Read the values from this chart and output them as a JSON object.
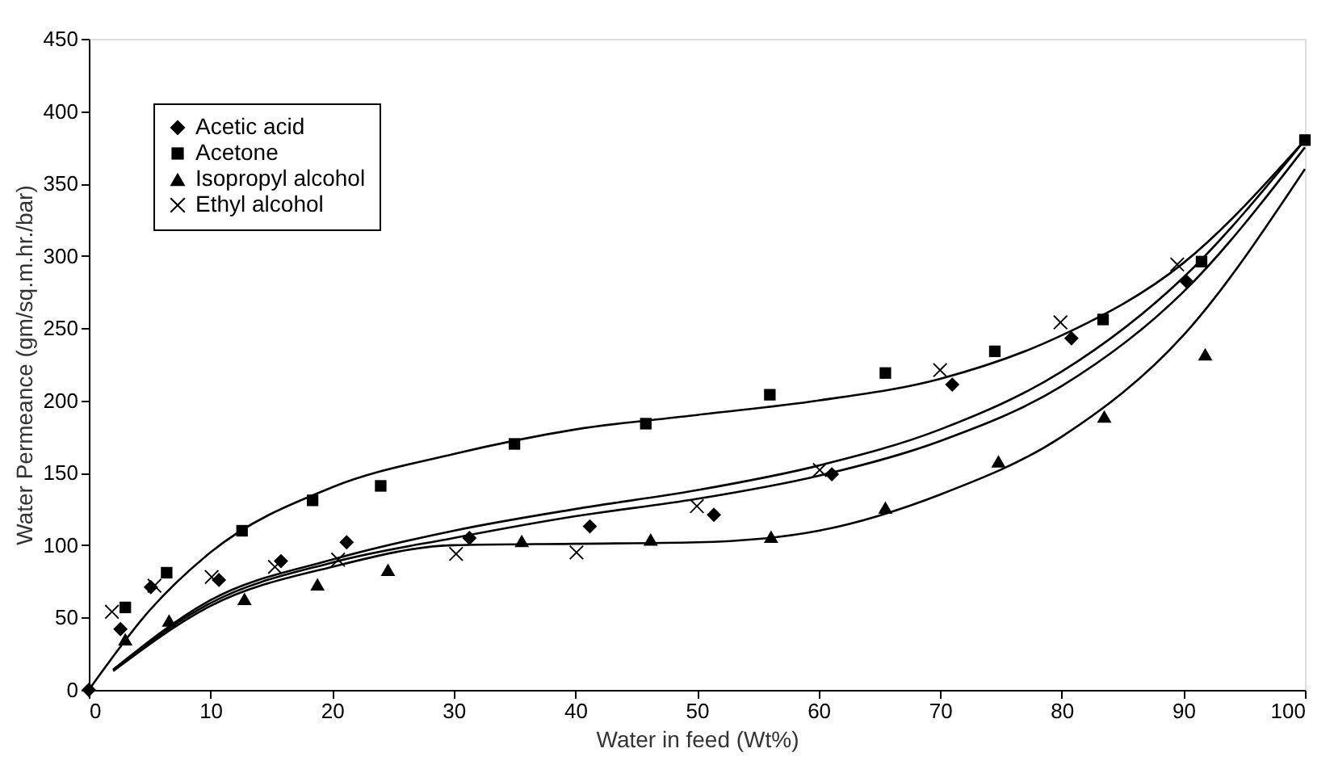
{
  "chart_data": {
    "type": "scatter",
    "xlabel": "Water in feed (Wt%)",
    "ylabel": "Water Permeance (gm/sq.m.hr./bar)",
    "xlim": [
      0,
      100
    ],
    "ylim": [
      0,
      450
    ],
    "xticks": [
      0,
      10,
      20,
      30,
      40,
      50,
      60,
      70,
      80,
      90,
      100
    ],
    "yticks": [
      0,
      50,
      100,
      150,
      200,
      250,
      300,
      350,
      400,
      450
    ],
    "grid": false,
    "legend": "top left",
    "series": [
      {
        "name": "Acetic acid",
        "color": "#000000",
        "marker": "diamond",
        "x": [
          0,
          2.6,
          5.1,
          10.7,
          15.8,
          21.2,
          31.3,
          41.2,
          51.4,
          61.1,
          71,
          80.8,
          90.3
        ],
        "values": [
          0,
          42,
          71,
          76,
          89,
          102,
          105,
          113,
          121,
          149,
          211,
          243,
          282
        ]
      },
      {
        "name": "Acetone",
        "color": "#000000",
        "marker": "square",
        "x": [
          3,
          6.4,
          12.6,
          18.4,
          24,
          35,
          45.8,
          56,
          65.5,
          74.5,
          83.4,
          91.5,
          100
        ],
        "values": [
          57,
          81,
          110,
          131,
          141,
          170,
          184,
          204,
          219,
          234,
          256,
          296,
          380
        ]
      },
      {
        "name": "Isopropyl alcohol",
        "color": "#000000",
        "marker": "triangle",
        "x": [
          3,
          6.6,
          12.8,
          18.8,
          24.6,
          35.6,
          46.2,
          56.1,
          65.5,
          74.8,
          83.5,
          91.8
        ],
        "values": [
          35,
          48,
          63,
          73,
          83,
          103,
          104,
          106,
          126,
          158,
          189,
          232
        ]
      },
      {
        "name": "Ethyl alcohol",
        "color": "#000000",
        "marker": "cross",
        "x": [
          1.9,
          5.4,
          10.1,
          15.3,
          20.5,
          30.2,
          40.1,
          50,
          60.1,
          70,
          79.9,
          89.5
        ],
        "values": [
          54,
          72,
          78,
          85,
          90,
          94,
          95,
          127,
          152,
          221,
          254,
          294
        ]
      },
      {
        "type": "line",
        "color": "#000000",
        "x": [
          0,
          5,
          10,
          20,
          30,
          40,
          50,
          60,
          70,
          80,
          90,
          100
        ],
        "values": [
          0,
          55,
          95,
          140,
          163,
          180,
          190,
          200,
          215,
          245,
          295,
          380
        ]
      },
      {
        "type": "line",
        "color": "#000000",
        "x": [
          2,
          10,
          20,
          30,
          40,
          50,
          60,
          70,
          80,
          90,
          100
        ],
        "values": [
          14,
          62,
          90,
          110,
          125,
          138,
          155,
          180,
          220,
          285,
          380
        ]
      },
      {
        "type": "line",
        "color": "#000000",
        "x": [
          2,
          10,
          20,
          30,
          40,
          50,
          60,
          70,
          80,
          90,
          100
        ],
        "values": [
          14,
          60,
          88,
          105,
          120,
          132,
          148,
          172,
          210,
          275,
          375
        ]
      },
      {
        "type": "line",
        "color": "#000000",
        "x": [
          2,
          10,
          20,
          30,
          40,
          50,
          60,
          70,
          80,
          90,
          100
        ],
        "values": [
          13,
          58,
          85,
          100,
          101,
          102,
          110,
          135,
          175,
          245,
          360
        ]
      }
    ]
  }
}
